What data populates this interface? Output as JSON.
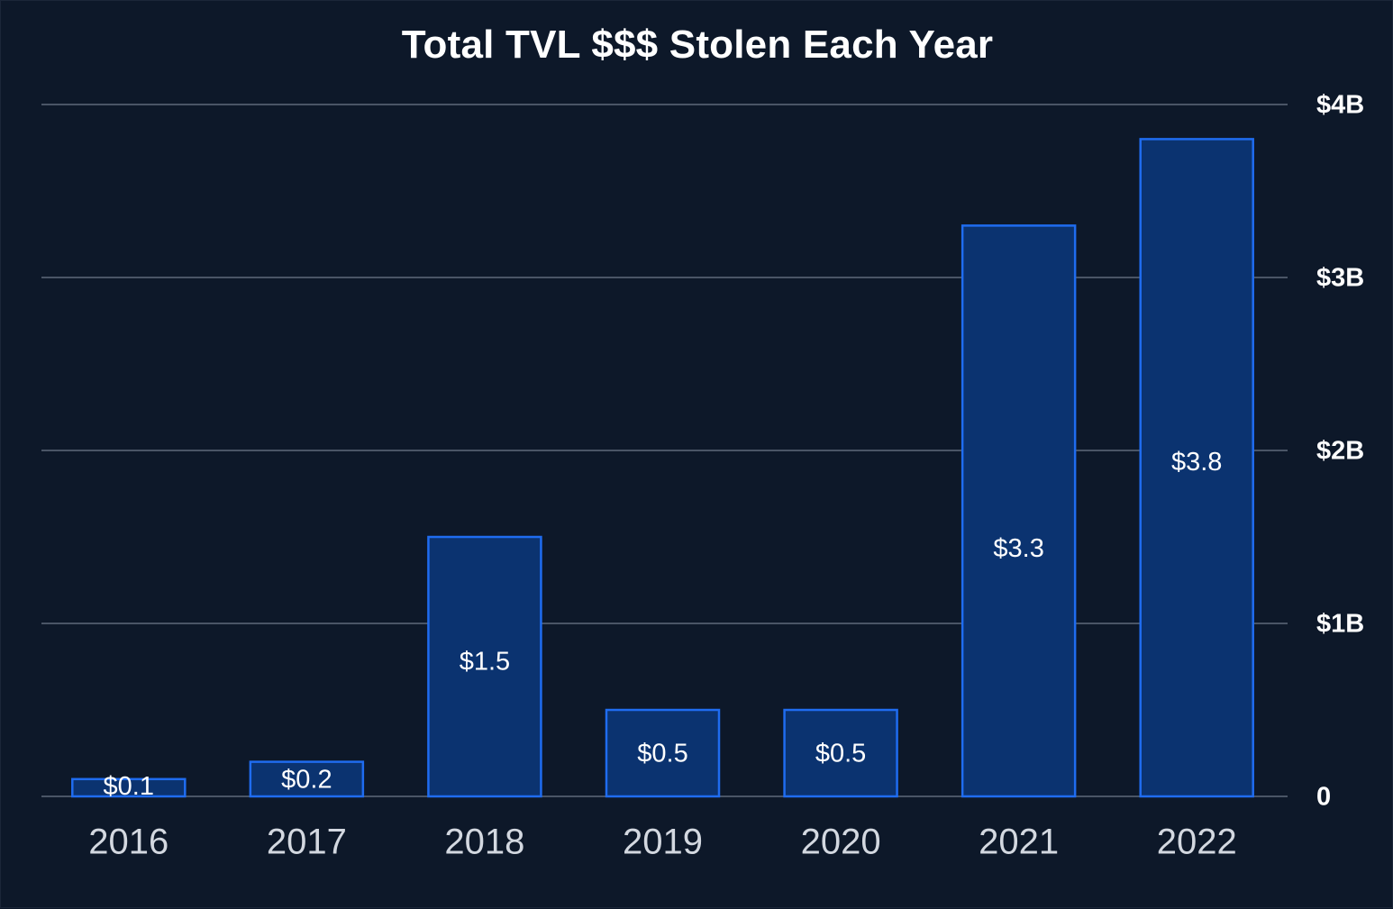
{
  "chart_data": {
    "type": "bar",
    "title": "Total TVL $$$ Stolen Each Year",
    "categories": [
      "2016",
      "2017",
      "2018",
      "2019",
      "2020",
      "2021",
      "2022"
    ],
    "values": [
      0.1,
      0.2,
      1.5,
      0.5,
      0.5,
      3.3,
      3.8
    ],
    "data_labels": [
      "$0.1",
      "$0.2",
      "$1.5",
      "$0.5",
      "$0.5",
      "$3.3",
      "$3.8"
    ],
    "y_ticks": [
      {
        "value": 0,
        "label": "0"
      },
      {
        "value": 1,
        "label": "$1B"
      },
      {
        "value": 2,
        "label": "$2B"
      },
      {
        "value": 3,
        "label": "$3B"
      },
      {
        "value": 4,
        "label": "$4B"
      }
    ],
    "ylim": [
      0,
      4
    ],
    "y_axis_position": "right",
    "grid": true,
    "xlabel": "",
    "ylabel": "",
    "colors": {
      "background": "#0d1829",
      "bar_fill": "#0b3370",
      "bar_stroke": "#1f6cf0",
      "grid": "#4a5566",
      "text": "#ffffff",
      "x_tick_text": "#d3d8e0"
    }
  }
}
